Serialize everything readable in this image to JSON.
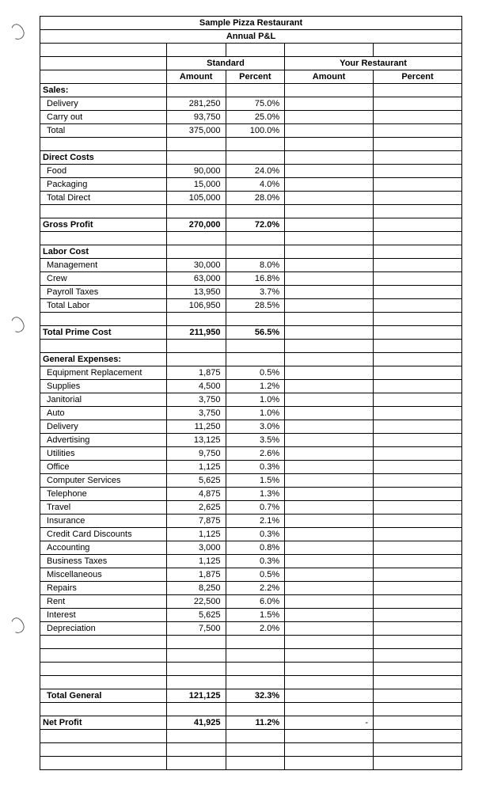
{
  "title1": "Sample Pizza Restaurant",
  "title2": "Annual P&L",
  "headers": {
    "standard": "Standard",
    "your": "Your Restaurant",
    "amount": "Amount",
    "percent": "Percent"
  },
  "sections": [
    {
      "label": "Sales:",
      "rows": [
        {
          "l": "Delivery",
          "a": "281,250",
          "p": "75.0%"
        },
        {
          "l": "Carry out",
          "a": "93,750",
          "p": "25.0%"
        },
        {
          "l": "Total",
          "a": "375,000",
          "p": "100.0%"
        }
      ]
    },
    {
      "label": "Direct Costs",
      "rows": [
        {
          "l": "Food",
          "a": "90,000",
          "p": "24.0%"
        },
        {
          "l": "Packaging",
          "a": "15,000",
          "p": "4.0%"
        },
        {
          "l": "Total Direct",
          "a": "105,000",
          "p": "28.0%"
        }
      ]
    },
    {
      "label": "Gross Profit",
      "isTotal": true,
      "a": "270,000",
      "p": "72.0%"
    },
    {
      "label": "Labor Cost",
      "rows": [
        {
          "l": "Management",
          "a": "30,000",
          "p": "8.0%"
        },
        {
          "l": "Crew",
          "a": "63,000",
          "p": "16.8%"
        },
        {
          "l": "Payroll Taxes",
          "a": "13,950",
          "p": "3.7%"
        },
        {
          "l": "Total Labor",
          "a": "106,950",
          "p": "28.5%"
        }
      ]
    },
    {
      "label": "Total Prime Cost",
      "isTotal": true,
      "a": "211,950",
      "p": "56.5%"
    },
    {
      "label": "General Expenses:",
      "rows": [
        {
          "l": "Equipment Replacement",
          "a": "1,875",
          "p": "0.5%"
        },
        {
          "l": "Supplies",
          "a": "4,500",
          "p": "1.2%"
        },
        {
          "l": "Janitorial",
          "a": "3,750",
          "p": "1.0%"
        },
        {
          "l": "Auto",
          "a": "3,750",
          "p": "1.0%"
        },
        {
          "l": "Delivery",
          "a": "11,250",
          "p": "3.0%"
        },
        {
          "l": "Advertising",
          "a": "13,125",
          "p": "3.5%"
        },
        {
          "l": "Utilities",
          "a": "9,750",
          "p": "2.6%"
        },
        {
          "l": "Office",
          "a": "1,125",
          "p": "0.3%"
        },
        {
          "l": "Computer Services",
          "a": "5,625",
          "p": "1.5%"
        },
        {
          "l": "Telephone",
          "a": "4,875",
          "p": "1.3%"
        },
        {
          "l": "Travel",
          "a": "2,625",
          "p": "0.7%"
        },
        {
          "l": "Insurance",
          "a": "7,875",
          "p": "2.1%"
        },
        {
          "l": "Credit Card Discounts",
          "a": "1,125",
          "p": "0.3%"
        },
        {
          "l": "Accounting",
          "a": "3,000",
          "p": "0.8%"
        },
        {
          "l": "Business Taxes",
          "a": "1,125",
          "p": "0.3%"
        },
        {
          "l": "Miscellaneous",
          "a": "1,875",
          "p": "0.5%"
        },
        {
          "l": "Repairs",
          "a": "8,250",
          "p": "2.2%"
        },
        {
          "l": "Rent",
          "a": "22,500",
          "p": "6.0%"
        },
        {
          "l": "Interest",
          "a": "5,625",
          "p": "1.5%"
        },
        {
          "l": "Depreciation",
          "a": "7,500",
          "p": "2.0%"
        }
      ]
    },
    {
      "label": "Total General",
      "isTotal": true,
      "indent": true,
      "blanksBefore": 3,
      "a": "121,125",
      "p": "32.3%"
    },
    {
      "label": "Net Profit",
      "isTotal": true,
      "a": "41,925",
      "p": "11.2%",
      "yourAmount": "-"
    },
    {
      "blanksOnly": 2
    }
  ]
}
